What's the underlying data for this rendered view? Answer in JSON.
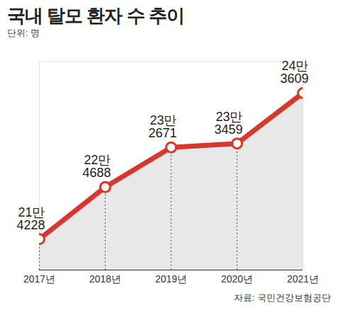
{
  "chart_data": {
    "type": "line",
    "title": "국내 탈모 환자 수 추이",
    "subtitle": "단위: 명",
    "caption": "자료: 국민건강보험공단",
    "categories": [
      "2017년",
      "2018년",
      "2019년",
      "2020년",
      "2021년"
    ],
    "values": [
      214228,
      224688,
      232671,
      233459,
      243609
    ],
    "value_labels": [
      "21만\n4228",
      "22만\n4688",
      "23만\n2671",
      "23만\n3459",
      "24만\n3609"
    ],
    "color": "#d7382b",
    "marker": "circle",
    "data_labels": true,
    "tick_labels": "x",
    "grid": false,
    "ylim": [
      208000,
      250000
    ]
  }
}
